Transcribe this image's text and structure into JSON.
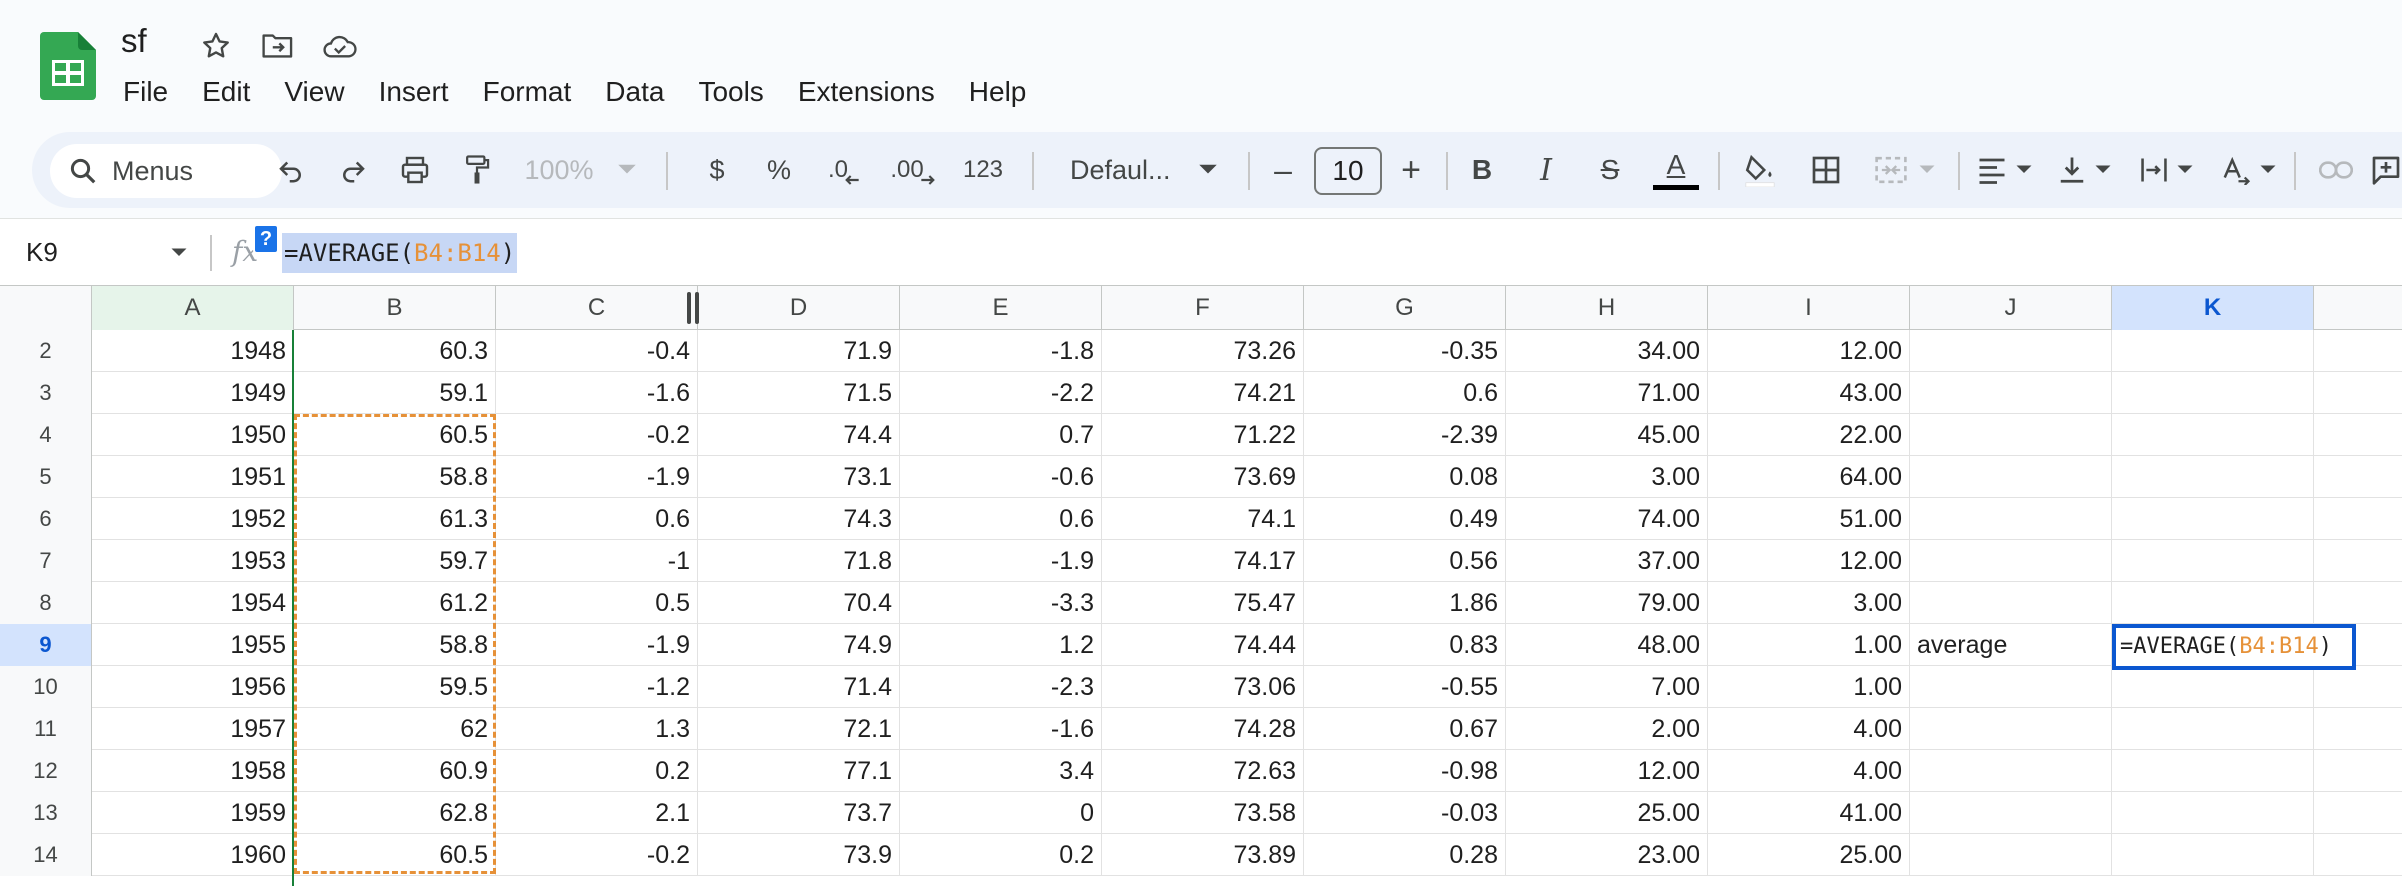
{
  "app": {
    "doc_title": "sf",
    "brand_color": "#34a853",
    "accent_color": "#0b57d0",
    "reference_color": "#e69138"
  },
  "menu": [
    "File",
    "Edit",
    "View",
    "Insert",
    "Format",
    "Data",
    "Tools",
    "Extensions",
    "Help"
  ],
  "toolbar": {
    "search_label": "Menus",
    "zoom": "100%",
    "currency": "$",
    "percent": "%",
    "decrease_decimal": ".0",
    "increase_decimal": ".00",
    "number_format": "123",
    "font": "Defaul...",
    "font_size": "10",
    "minus": "–",
    "plus": "+"
  },
  "formula_bar": {
    "name_box": "K9",
    "formula_prefix": "=AVERAGE(",
    "formula_ref": "B4:B14",
    "formula_suffix": ")",
    "help_badge": "?"
  },
  "columns": [
    "A",
    "B",
    "C",
    "D",
    "E",
    "F",
    "G",
    "H",
    "I",
    "J",
    "K"
  ],
  "selected_column": "K",
  "selected_row": "9",
  "rows": [
    {
      "n": "2",
      "cells": [
        "1948",
        "60.3",
        "-0.4",
        "71.9",
        "-1.8",
        "73.26",
        "-0.35",
        "34.00",
        "12.00",
        "",
        ""
      ]
    },
    {
      "n": "3",
      "cells": [
        "1949",
        "59.1",
        "-1.6",
        "71.5",
        "-2.2",
        "74.21",
        "0.6",
        "71.00",
        "43.00",
        "",
        ""
      ]
    },
    {
      "n": "4",
      "cells": [
        "1950",
        "60.5",
        "-0.2",
        "74.4",
        "0.7",
        "71.22",
        "-2.39",
        "45.00",
        "22.00",
        "",
        ""
      ]
    },
    {
      "n": "5",
      "cells": [
        "1951",
        "58.8",
        "-1.9",
        "73.1",
        "-0.6",
        "73.69",
        "0.08",
        "3.00",
        "64.00",
        "",
        ""
      ]
    },
    {
      "n": "6",
      "cells": [
        "1952",
        "61.3",
        "0.6",
        "74.3",
        "0.6",
        "74.1",
        "0.49",
        "74.00",
        "51.00",
        "",
        ""
      ]
    },
    {
      "n": "7",
      "cells": [
        "1953",
        "59.7",
        "-1",
        "71.8",
        "-1.9",
        "74.17",
        "0.56",
        "37.00",
        "12.00",
        "",
        ""
      ]
    },
    {
      "n": "8",
      "cells": [
        "1954",
        "61.2",
        "0.5",
        "70.4",
        "-3.3",
        "75.47",
        "1.86",
        "79.00",
        "3.00",
        "",
        ""
      ]
    },
    {
      "n": "9",
      "cells": [
        "1955",
        "58.8",
        "-1.9",
        "74.9",
        "1.2",
        "74.44",
        "0.83",
        "48.00",
        "1.00",
        "average",
        ""
      ]
    },
    {
      "n": "10",
      "cells": [
        "1956",
        "59.5",
        "-1.2",
        "71.4",
        "-2.3",
        "73.06",
        "-0.55",
        "7.00",
        "1.00",
        "",
        ""
      ]
    },
    {
      "n": "11",
      "cells": [
        "1957",
        "62",
        "1.3",
        "72.1",
        "-1.6",
        "74.28",
        "0.67",
        "2.00",
        "4.00",
        "",
        ""
      ]
    },
    {
      "n": "12",
      "cells": [
        "1958",
        "60.9",
        "0.2",
        "77.1",
        "3.4",
        "72.63",
        "-0.98",
        "12.00",
        "4.00",
        "",
        ""
      ]
    },
    {
      "n": "13",
      "cells": [
        "1959",
        "62.8",
        "2.1",
        "73.7",
        "0",
        "73.58",
        "-0.03",
        "25.00",
        "41.00",
        "",
        ""
      ]
    },
    {
      "n": "14",
      "cells": [
        "1960",
        "60.5",
        "-0.2",
        "73.9",
        "0.2",
        "73.89",
        "0.28",
        "23.00",
        "25.00",
        "",
        ""
      ]
    }
  ],
  "active_cell_edit": {
    "prefix": "=AVERAGE(",
    "ref": "B4:B14",
    "suffix": ")"
  }
}
